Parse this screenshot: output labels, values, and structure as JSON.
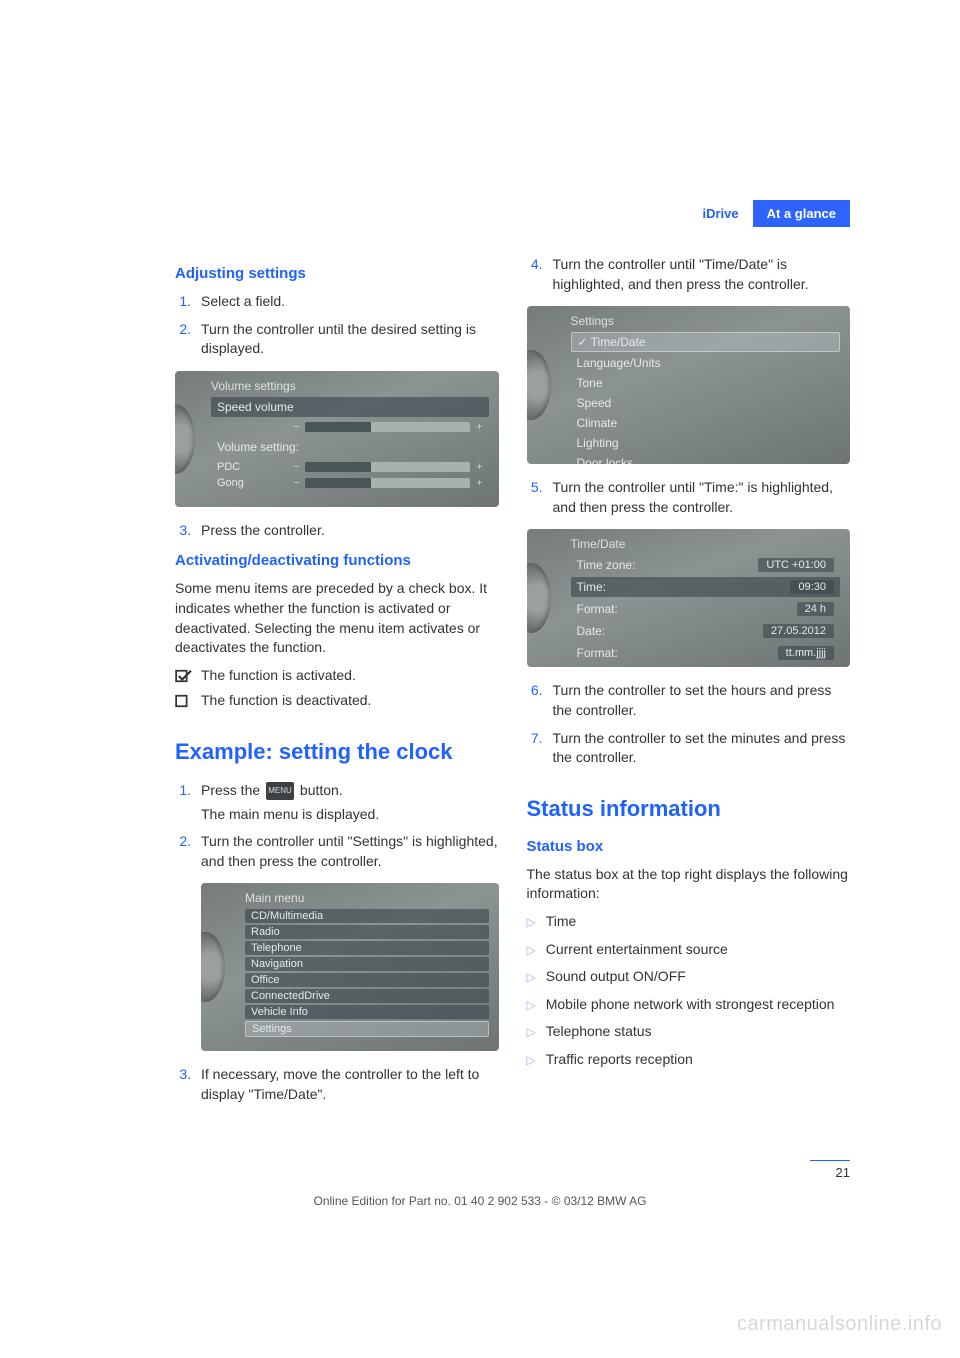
{
  "header": {
    "tab_idrive": "iDrive",
    "tab_glance": "At a glance"
  },
  "left": {
    "adjusting_heading": "Adjusting settings",
    "adjusting_steps": {
      "s1_num": "1.",
      "s1": "Select a field.",
      "s2_num": "2.",
      "s2": "Turn the controller until the desired setting is displayed.",
      "s3_num": "3.",
      "s3": "Press the controller."
    },
    "volume_screen": {
      "title": "Volume settings",
      "row1": "Speed volume",
      "row2": "Volume setting:",
      "row3_label": "PDC",
      "row4_label": "Gong"
    },
    "activating_heading": "Activating/deactivating functions",
    "activating_body": "Some menu items are preceded by a check box. It indicates whether the function is activated or deactivated. Selecting the menu item activates or deactivates the function.",
    "func_on": "The function is activated.",
    "func_off": "The function is deactivated.",
    "example_title": "Example: setting the clock",
    "ex_s1_num": "1.",
    "ex_s1_a": "Press the",
    "ex_s1_b": "button.",
    "ex_s1_sub": "The main menu is displayed.",
    "menu_label": "MENU",
    "ex_s2_num": "2.",
    "ex_s2": "Turn the controller until \"Settings\" is highlighted, and then press the controller.",
    "mainmenu_screen": {
      "title": "Main menu",
      "items": [
        "CD/Multimedia",
        "Radio",
        "Telephone",
        "Navigation",
        "Office",
        "ConnectedDrive",
        "Vehicle Info",
        "Settings"
      ]
    },
    "ex_s3_num": "3.",
    "ex_s3": "If necessary, move the controller to the left to display \"Time/Date\"."
  },
  "right": {
    "s4_num": "4.",
    "s4": "Turn the controller until \"Time/Date\" is highlighted, and then press the controller.",
    "settings_screen": {
      "title": "Settings",
      "items": [
        "Time/Date",
        "Language/Units",
        "Tone",
        "Speed",
        "Climate",
        "Lighting",
        "Door locks"
      ]
    },
    "s5_num": "5.",
    "s5": "Turn the controller until \"Time:\" is highlighted, and then press the controller.",
    "timedate_screen": {
      "title": "Time/Date",
      "rows": [
        {
          "k": "Time zone:",
          "v": "UTC +01:00"
        },
        {
          "k": "Time:",
          "v": "09:30",
          "hl": true
        },
        {
          "k": "Format:",
          "v": "24 h"
        },
        {
          "k": "Date:",
          "v": "27.05.2012"
        },
        {
          "k": "Format:",
          "v": "tt.mm.jjjj"
        }
      ]
    },
    "s6_num": "6.",
    "s6": "Turn the controller to set the hours and press the controller.",
    "s7_num": "7.",
    "s7": "Turn the controller to set the minutes and press the controller.",
    "status_title": "Status information",
    "status_box_heading": "Status box",
    "status_box_body": "The status box at the top right displays the following information:",
    "bullets": [
      "Time",
      "Current entertainment source",
      "Sound output ON/OFF",
      "Mobile phone network with strongest reception",
      "Telephone status",
      "Traffic reports reception"
    ]
  },
  "footer": {
    "line": "Online Edition for Part no. 01 40 2 902 533 - © 03/12 BMW AG",
    "page": "21"
  },
  "watermark": "carmanualsonline.info",
  "colors": {
    "accent": "#2062ff",
    "triangle": "#9bb8e8"
  }
}
